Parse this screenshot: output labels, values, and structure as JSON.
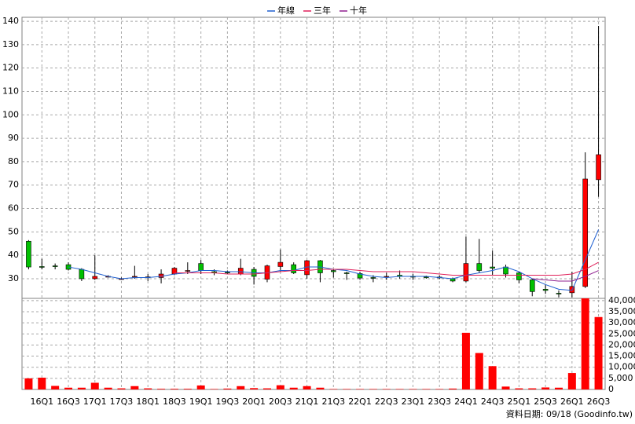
{
  "chart_data": [
    {
      "type": "candlestick",
      "categories": [
        null,
        "16Q1",
        null,
        "16Q3",
        null,
        "17Q1",
        null,
        "17Q3",
        null,
        "18Q1",
        null,
        "18Q3",
        null,
        "19Q1",
        null,
        "19Q3",
        null,
        "20Q1",
        null,
        "20Q3",
        null,
        "21Q1",
        null,
        "21Q3",
        null,
        "22Q1",
        null,
        "22Q3",
        null,
        "23Q1",
        null,
        "23Q3",
        null,
        "24Q1",
        null,
        "24Q3",
        null,
        "25Q1",
        null,
        "25Q3",
        null,
        "26Q1",
        null,
        "26Q3"
      ],
      "open": [
        46,
        35.2,
        35.5,
        36,
        34,
        30,
        31,
        30,
        31,
        30.5,
        30.5,
        32,
        33.5,
        36.5,
        33,
        32.8,
        32,
        34,
        29.8,
        35.2,
        36,
        31.7,
        37.7,
        33.5,
        32.5,
        32.2,
        30.5,
        31,
        31.5,
        31,
        30.8,
        30.7,
        30,
        29,
        36.5,
        35,
        35,
        32.5,
        29.5,
        25.5,
        23.8,
        24,
        26.7,
        72.3
      ],
      "high": [
        46.5,
        38.5,
        36.5,
        37,
        34.5,
        40,
        31.5,
        30.5,
        35.5,
        32,
        34,
        35,
        37,
        38,
        34,
        33.5,
        38.5,
        35,
        36,
        42.5,
        37,
        38,
        38,
        34,
        33,
        33,
        31.5,
        32.5,
        33.5,
        32,
        31.3,
        31.5,
        30.5,
        48,
        47,
        42,
        36,
        33,
        30,
        27.5,
        25,
        33,
        84,
        138
      ],
      "low": [
        34,
        34,
        34,
        33.5,
        29,
        29.5,
        30.5,
        29.5,
        30,
        29,
        28,
        31.5,
        32,
        32,
        31.5,
        32,
        31.5,
        27.5,
        28.5,
        33,
        32,
        30,
        28.5,
        30.5,
        29.5,
        29.5,
        28.5,
        29.5,
        30,
        29.5,
        30,
        29.8,
        28.5,
        28.5,
        32.5,
        31.5,
        30.5,
        28,
        22.5,
        23.5,
        22,
        22,
        26,
        65
      ],
      "close": [
        35,
        35,
        35.3,
        34,
        30,
        31,
        31,
        30,
        31,
        30.8,
        32,
        34.5,
        33.5,
        33.5,
        32.5,
        32.7,
        34.5,
        31,
        35.5,
        37,
        32.5,
        37.7,
        32.5,
        33,
        32.3,
        30.3,
        30.3,
        31,
        31,
        30.8,
        30.6,
        30.4,
        29,
        36.5,
        33.5,
        34.5,
        32,
        29.5,
        24.5,
        25,
        23.5,
        26.7,
        72.6,
        83
      ],
      "up_color": "#ff0000",
      "down_color": "#00c000",
      "series": [
        {
          "name": "年線",
          "color": "#1f5fd0",
          "values": [
            null,
            null,
            null,
            35,
            34,
            32.5,
            31,
            30,
            30.5,
            30.5,
            31,
            32,
            32.5,
            33.5,
            33.5,
            33,
            33,
            32.5,
            32.5,
            33.5,
            33.5,
            35,
            35,
            34,
            33.5,
            32,
            31,
            30.5,
            31,
            31,
            31,
            30.5,
            30,
            31.5,
            32.5,
            33.5,
            35,
            33,
            30,
            27.5,
            25.5,
            25,
            38,
            51
          ]
        },
        {
          "name": "三年",
          "color": "#e0205a",
          "values": [
            null,
            null,
            null,
            null,
            null,
            null,
            null,
            null,
            null,
            null,
            null,
            32.5,
            32.5,
            32.5,
            32.5,
            32,
            32,
            32,
            32.5,
            33,
            33.5,
            33.5,
            34,
            34,
            34,
            33.5,
            33,
            33,
            33,
            33,
            32.5,
            32,
            31.5,
            31.5,
            31.5,
            31.5,
            31.5,
            31.5,
            31.5,
            31.5,
            31.5,
            32,
            34,
            37
          ]
        },
        {
          "name": "十年",
          "color": "#902090",
          "values": [
            null,
            null,
            null,
            null,
            null,
            null,
            null,
            null,
            null,
            null,
            null,
            null,
            null,
            null,
            null,
            null,
            null,
            null,
            null,
            null,
            null,
            null,
            null,
            null,
            null,
            null,
            null,
            null,
            null,
            null,
            null,
            null,
            null,
            null,
            null,
            null,
            null,
            null,
            30,
            29.5,
            29,
            29,
            31,
            33.5
          ]
        }
      ],
      "ylim": [
        21.6,
        141.7
      ],
      "yticks": [
        30,
        40,
        50,
        60,
        70,
        80,
        90,
        100,
        110,
        120,
        130,
        140
      ],
      "grid": true
    },
    {
      "type": "bar",
      "color": "#ff0000",
      "values": [
        5000,
        5300,
        1600,
        800,
        800,
        3000,
        800,
        500,
        1500,
        500,
        300,
        300,
        300,
        1800,
        200,
        400,
        1500,
        600,
        500,
        1900,
        800,
        1500,
        800,
        200,
        200,
        200,
        200,
        200,
        200,
        200,
        200,
        200,
        400,
        25500,
        16400,
        10500,
        1300,
        500,
        500,
        900,
        800,
        7400,
        41000,
        32600
      ],
      "ylim": [
        0,
        41000
      ],
      "yticks": [
        0,
        {
          "value": 5000,
          "label": "5,000"
        },
        {
          "value": 10000,
          "label": "10,000"
        },
        {
          "value": 15000,
          "label": "15,000"
        },
        {
          "value": 20000,
          "label": "20,000"
        },
        {
          "value": 25000,
          "label": "25,000"
        },
        {
          "value": 30000,
          "label": "30,000"
        },
        {
          "value": 35000,
          "label": "35,000"
        },
        {
          "value": 40000,
          "label": "40,000"
        }
      ],
      "grid": true,
      "footer": "資料日期: 09/18 (Goodinfo.tw)"
    }
  ]
}
